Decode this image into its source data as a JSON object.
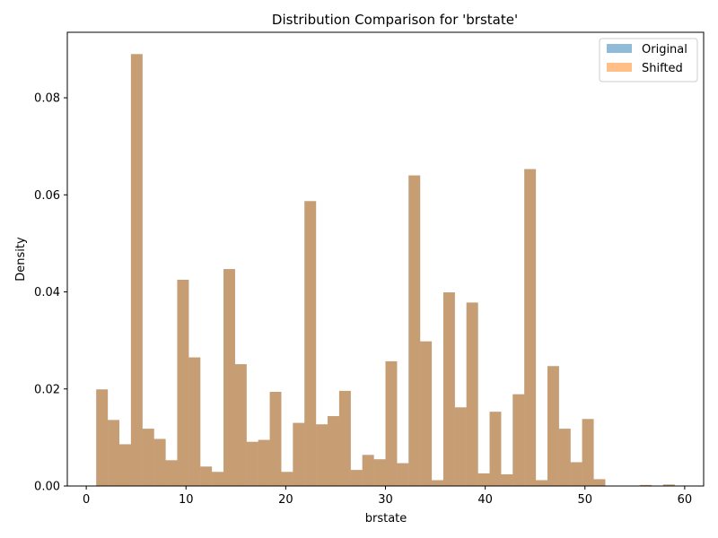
{
  "chart_data": {
    "type": "histogram",
    "title": "Distribution Comparison for 'brstate'",
    "xlabel": "brstate",
    "ylabel": "Density",
    "xlim": [
      -1.9,
      61.9
    ],
    "ylim": [
      0,
      0.0935
    ],
    "xticks": [
      0,
      10,
      20,
      30,
      40,
      50,
      60
    ],
    "yticks": [
      0.0,
      0.02,
      0.04,
      0.06,
      0.08
    ],
    "ytick_labels": [
      "0.00",
      "0.02",
      "0.04",
      "0.06",
      "0.08"
    ],
    "bin_start": 1.0,
    "bin_width": 1.16,
    "series": [
      {
        "name": "Original",
        "color": "#1f77b4",
        "alpha": 0.5,
        "values": [
          0.0199,
          0.0136,
          0.0086,
          0.089,
          0.0118,
          0.0097,
          0.0053,
          0.0425,
          0.0265,
          0.004,
          0.0029,
          0.0447,
          0.0251,
          0.0091,
          0.0095,
          0.0194,
          0.0029,
          0.013,
          0.0587,
          0.0127,
          0.0144,
          0.0196,
          0.0033,
          0.0064,
          0.0055,
          0.0257,
          0.0047,
          0.064,
          0.0298,
          0.0012,
          0.0399,
          0.0162,
          0.0378,
          0.0026,
          0.0153,
          0.0024,
          0.0189,
          0.0653,
          0.0012,
          0.0247,
          0.0118,
          0.0049,
          0.0138,
          0.0014,
          0.0,
          0.0,
          0.0,
          0.0002,
          0.0,
          0.0003
        ]
      },
      {
        "name": "Shifted",
        "color": "#ff7f0e",
        "alpha": 0.5,
        "values": [
          0.0199,
          0.0136,
          0.0086,
          0.089,
          0.0118,
          0.0097,
          0.0053,
          0.0425,
          0.0265,
          0.004,
          0.0029,
          0.0447,
          0.0251,
          0.0091,
          0.0095,
          0.0194,
          0.0029,
          0.013,
          0.0587,
          0.0127,
          0.0144,
          0.0196,
          0.0033,
          0.0064,
          0.0055,
          0.0257,
          0.0047,
          0.064,
          0.0298,
          0.0012,
          0.0399,
          0.0162,
          0.0378,
          0.0026,
          0.0153,
          0.0024,
          0.0189,
          0.0653,
          0.0012,
          0.0247,
          0.0118,
          0.0049,
          0.0138,
          0.0014,
          0.0,
          0.0,
          0.0,
          0.0002,
          0.0,
          0.0003
        ]
      }
    ],
    "legend_position": "top-right",
    "grid": false
  }
}
